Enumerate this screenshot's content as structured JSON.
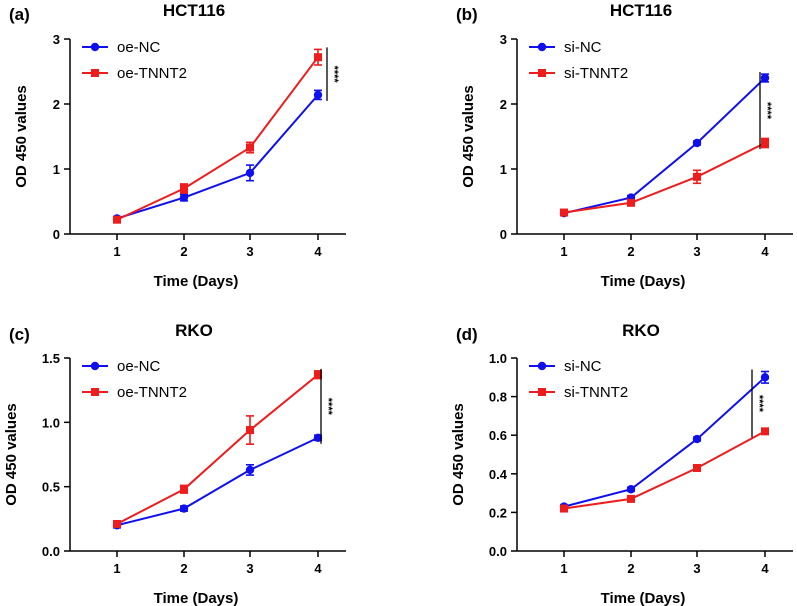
{
  "chart_data": [
    {
      "id": "a",
      "panel_label": "(a)",
      "type": "line",
      "title": "HCT116",
      "xlabel": "Time (Days)",
      "ylabel": "OD 450 values",
      "x": [
        1,
        2,
        3,
        4
      ],
      "x_tick_labels": [
        "1",
        "2",
        "3",
        "4"
      ],
      "ylim": [
        0,
        3
      ],
      "y_ticks": [
        0,
        1,
        2,
        3
      ],
      "y_tick_labels": [
        "0",
        "1",
        "2",
        "3"
      ],
      "legend_position": "top-left",
      "significance": "****",
      "series": [
        {
          "name": "oe-NC",
          "color": "#1010ee",
          "marker": "circle",
          "values": [
            0.24,
            0.56,
            0.94,
            2.14
          ],
          "errors": [
            0.03,
            0.05,
            0.12,
            0.07
          ]
        },
        {
          "name": "oe-TNNT2",
          "color": "#ee1c1c",
          "marker": "square",
          "values": [
            0.22,
            0.7,
            1.33,
            2.72
          ],
          "errors": [
            0.04,
            0.07,
            0.08,
            0.12
          ]
        }
      ]
    },
    {
      "id": "b",
      "panel_label": "(b)",
      "type": "line",
      "title": "HCT116",
      "xlabel": "Time (Days)",
      "ylabel": "OD 450 values",
      "x": [
        1,
        2,
        3,
        4
      ],
      "x_tick_labels": [
        "1",
        "2",
        "3",
        "4"
      ],
      "ylim": [
        0,
        3
      ],
      "y_ticks": [
        0,
        1,
        2,
        3
      ],
      "y_tick_labels": [
        "0",
        "1",
        "2",
        "3"
      ],
      "legend_position": "top-left",
      "significance": "****",
      "series": [
        {
          "name": "si-NC",
          "color": "#1010ee",
          "marker": "circle",
          "values": [
            0.32,
            0.56,
            1.4,
            2.4
          ],
          "errors": [
            0.03,
            0.03,
            0.03,
            0.06
          ]
        },
        {
          "name": "si-TNNT2",
          "color": "#ee1c1c",
          "marker": "square",
          "values": [
            0.33,
            0.48,
            0.88,
            1.4
          ],
          "errors": [
            0.04,
            0.04,
            0.1,
            0.07
          ]
        }
      ]
    },
    {
      "id": "c",
      "panel_label": "(c)",
      "type": "line",
      "title": "RKO",
      "xlabel": "Time (Days)",
      "ylabel": "OD 450 values",
      "x": [
        1,
        2,
        3,
        4
      ],
      "x_tick_labels": [
        "1",
        "2",
        "3",
        "4"
      ],
      "ylim": [
        0,
        1.5
      ],
      "y_ticks": [
        0,
        0.5,
        1.0,
        1.5
      ],
      "y_tick_labels": [
        "0.0",
        "0.5",
        "1.0",
        "1.5"
      ],
      "legend_position": "top-left",
      "significance": "****",
      "series": [
        {
          "name": "oe-NC",
          "color": "#1010ee",
          "marker": "circle",
          "values": [
            0.2,
            0.33,
            0.63,
            0.88
          ],
          "errors": [
            0.02,
            0.02,
            0.04,
            0.02
          ]
        },
        {
          "name": "oe-TNNT2",
          "color": "#ee1c1c",
          "marker": "square",
          "values": [
            0.21,
            0.48,
            0.94,
            1.37
          ],
          "errors": [
            0.02,
            0.03,
            0.11,
            0.03
          ]
        }
      ]
    },
    {
      "id": "d",
      "panel_label": "(d)",
      "type": "line",
      "title": "RKO",
      "xlabel": "Time (Days)",
      "ylabel": "OD 450 values",
      "x": [
        1,
        2,
        3,
        4
      ],
      "x_tick_labels": [
        "1",
        "2",
        "3",
        "4"
      ],
      "ylim": [
        0,
        1.0
      ],
      "y_ticks": [
        0,
        0.2,
        0.4,
        0.6,
        0.8,
        1.0
      ],
      "y_tick_labels": [
        "0.0",
        "0.2",
        "0.4",
        "0.6",
        "0.8",
        "1.0"
      ],
      "legend_position": "top-left",
      "significance": "****",
      "series": [
        {
          "name": "si-NC",
          "color": "#1010ee",
          "marker": "circle",
          "values": [
            0.23,
            0.32,
            0.58,
            0.9
          ],
          "errors": [
            0.01,
            0.01,
            0.01,
            0.03
          ]
        },
        {
          "name": "si-TNNT2",
          "color": "#ee1c1c",
          "marker": "square",
          "values": [
            0.22,
            0.27,
            0.43,
            0.62
          ],
          "errors": [
            0.01,
            0.01,
            0.01,
            0.01
          ]
        }
      ]
    }
  ]
}
